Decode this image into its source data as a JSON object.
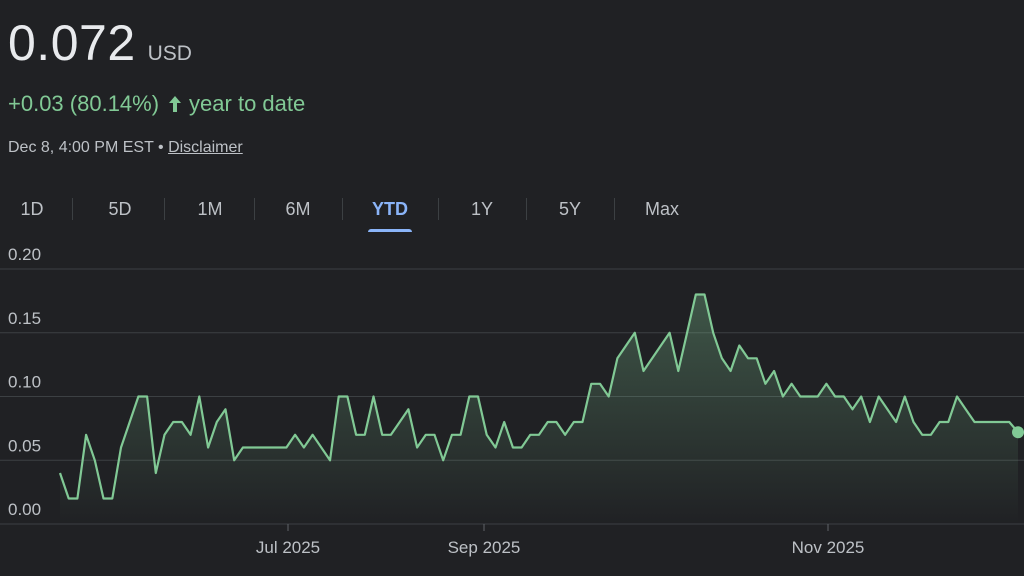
{
  "quote": {
    "price": "0.072",
    "currency": "USD",
    "change": "+0.03 (80.14%)",
    "change_period": "year to date",
    "timestamp": "Dec 8, 4:00 PM EST",
    "separator": "•",
    "disclaimer": "Disclaimer"
  },
  "tabs": [
    {
      "label": "1D",
      "active": false
    },
    {
      "label": "5D",
      "active": false
    },
    {
      "label": "1M",
      "active": false
    },
    {
      "label": "6M",
      "active": false
    },
    {
      "label": "YTD",
      "active": true
    },
    {
      "label": "1Y",
      "active": false
    },
    {
      "label": "5Y",
      "active": false
    },
    {
      "label": "Max",
      "active": false
    }
  ],
  "colors": {
    "line": "#81c995",
    "grid": "#3c4043",
    "active_tab": "#8ab4f8",
    "background": "#202124"
  },
  "chart_data": {
    "type": "area",
    "title": "",
    "xlabel": "",
    "ylabel": "",
    "ylim": [
      0,
      0.2
    ],
    "yticks": [
      "0.00",
      "0.05",
      "0.10",
      "0.15",
      "0.20"
    ],
    "xticks": [
      "Jul 2025",
      "Sep 2025",
      "Nov 2025"
    ],
    "grid": true,
    "legend": "none",
    "series": [
      {
        "values": [
          0.04,
          0.02,
          0.02,
          0.07,
          0.05,
          0.02,
          0.02,
          0.06,
          0.08,
          0.1,
          0.1,
          0.04,
          0.07,
          0.08,
          0.08,
          0.07,
          0.1,
          0.06,
          0.08,
          0.09,
          0.05,
          0.06,
          0.06,
          0.06,
          0.06,
          0.06,
          0.06,
          0.07,
          0.06,
          0.07,
          0.06,
          0.05,
          0.1,
          0.1,
          0.07,
          0.07,
          0.1,
          0.07,
          0.07,
          0.08,
          0.09,
          0.06,
          0.07,
          0.07,
          0.05,
          0.07,
          0.07,
          0.1,
          0.1,
          0.07,
          0.06,
          0.08,
          0.06,
          0.06,
          0.07,
          0.07,
          0.08,
          0.08,
          0.07,
          0.08,
          0.08,
          0.11,
          0.11,
          0.1,
          0.13,
          0.14,
          0.15,
          0.12,
          0.13,
          0.14,
          0.15,
          0.12,
          0.15,
          0.18,
          0.18,
          0.15,
          0.13,
          0.12,
          0.14,
          0.13,
          0.13,
          0.11,
          0.12,
          0.1,
          0.11,
          0.1,
          0.1,
          0.1,
          0.11,
          0.1,
          0.1,
          0.09,
          0.1,
          0.08,
          0.1,
          0.09,
          0.08,
          0.1,
          0.08,
          0.07,
          0.07,
          0.08,
          0.08,
          0.1,
          0.09,
          0.08,
          0.08,
          0.08,
          0.08,
          0.08,
          0.072
        ]
      }
    ]
  }
}
